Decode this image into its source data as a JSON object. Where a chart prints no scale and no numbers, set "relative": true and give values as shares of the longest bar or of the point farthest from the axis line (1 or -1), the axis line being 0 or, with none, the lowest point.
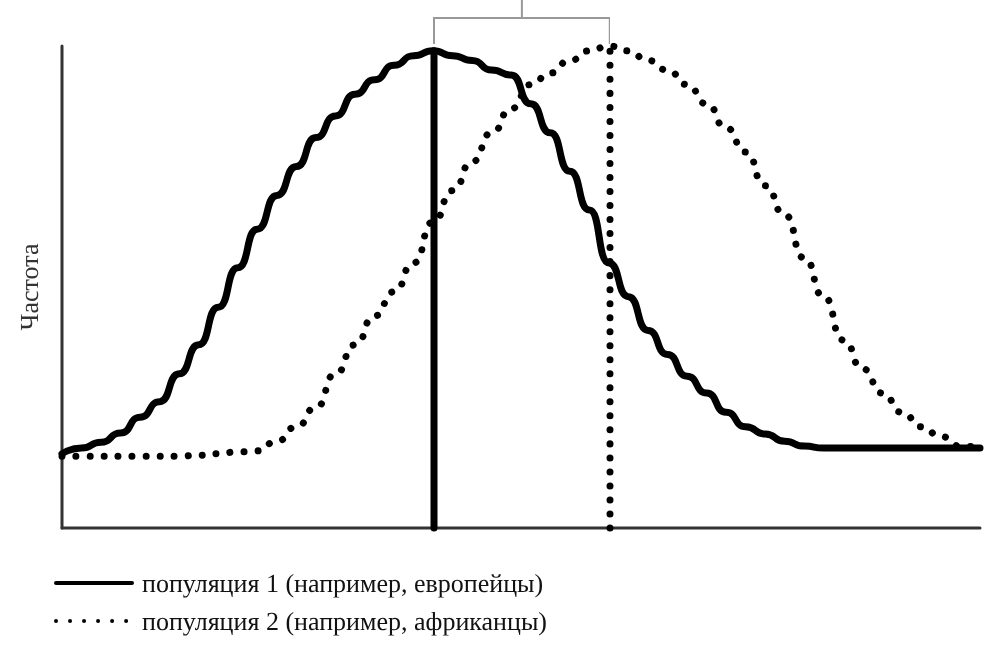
{
  "chart_data": {
    "type": "line",
    "relative": true,
    "ylabel": "Частота",
    "categories": [
      null,
      null,
      null,
      null,
      null,
      null,
      null,
      null,
      null,
      null,
      null,
      null,
      null,
      null,
      null,
      null,
      null,
      null,
      null,
      null,
      null,
      null,
      null,
      null,
      null,
      null,
      null,
      null,
      null,
      null,
      null,
      null,
      null,
      null,
      null,
      null,
      null,
      null,
      null,
      null,
      null,
      null,
      null,
      null,
      null,
      null,
      null,
      null
    ],
    "series": [
      {
        "name": "популяция 1 (например, европейцы)",
        "color": "#000000",
        "line_style": "solid",
        "values": [
          0.154,
          0.166,
          0.178,
          0.197,
          0.23,
          0.262,
          0.32,
          0.38,
          0.458,
          0.54,
          0.62,
          0.69,
          0.75,
          0.81,
          0.855,
          0.9,
          0.93,
          0.96,
          0.98,
          0.99,
          0.98,
          0.97,
          0.95,
          0.94,
          0.88,
          0.82,
          0.74,
          0.66,
          0.55,
          0.48,
          0.41,
          0.36,
          0.315,
          0.28,
          0.24,
          0.21,
          0.195,
          0.18,
          0.17,
          0.166,
          0.166,
          0.166,
          0.166,
          0.166,
          0.166,
          0.166,
          0.166,
          0.166
        ]
      },
      {
        "name": "популяция 2 (например, африканцы)",
        "color": "#000000",
        "line_style": "dotted",
        "values": [
          0.149,
          0.149,
          0.149,
          0.149,
          0.149,
          0.149,
          0.149,
          0.151,
          0.154,
          0.158,
          0.16,
          0.18,
          0.21,
          0.25,
          0.32,
          0.38,
          0.44,
          0.49,
          0.55,
          0.635,
          0.7,
          0.76,
          0.82,
          0.87,
          0.92,
          0.944,
          0.97,
          0.99,
          1,
          0.99,
          0.97,
          0.95,
          0.92,
          0.88,
          0.83,
          0.78,
          0.71,
          0.65,
          0.56,
          0.48,
          0.39,
          0.33,
          0.28,
          0.24,
          0.21,
          0.19,
          0.17,
          0.166
        ]
      }
    ],
    "legend": "bottom left",
    "grid": false,
    "marker": "none"
  }
}
